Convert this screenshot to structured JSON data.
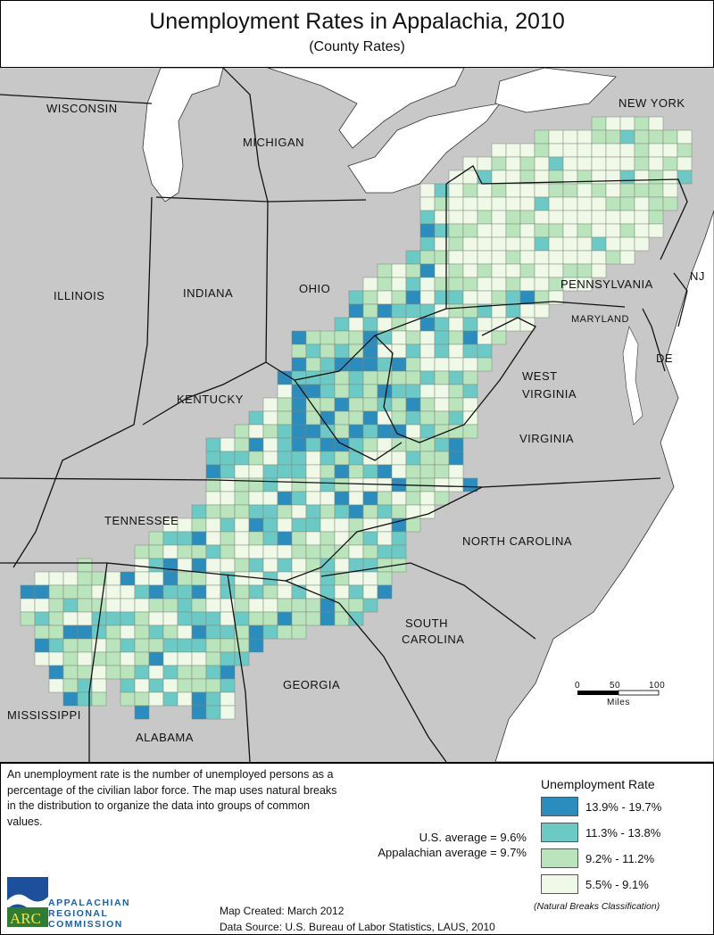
{
  "title": "Unemployment Rates in Appalachia, 2010",
  "subtitle": "(County Rates)",
  "map": {
    "state_labels": [
      "WISCONSIN",
      "MICHIGAN",
      "NEW YORK",
      "ILLINOIS",
      "INDIANA",
      "OHIO",
      "PENNSYLVANIA",
      "NJ",
      "MARYLAND",
      "DE",
      "WEST",
      "VIRGINIA",
      "KENTUCKY",
      "VIRGINIA",
      "TENNESSEE",
      "NORTH CAROLINA",
      "SOUTH",
      "CAROLINA",
      "GEORGIA",
      "MISSISSIPPI",
      "ALABAMA"
    ],
    "land_color": "#c8c8c8",
    "water_color": "#ffffff",
    "scale_bar": {
      "ticks": [
        "0",
        "50",
        "100"
      ],
      "unit": "Miles"
    }
  },
  "description": "An unemployment rate is the number of unemployed persons as a percentage of the civilian labor force. The map uses natural breaks in the distribution to organize the data into groups of common values.",
  "averages": [
    "U.S. average = 9.6%",
    "Appalachian average = 9.7%"
  ],
  "legend": {
    "title": "Unemployment Rate",
    "classes": [
      {
        "label": "13.9% - 19.7%",
        "color": "#2b8cbe"
      },
      {
        "label": "11.3% - 13.8%",
        "color": "#6ccac6"
      },
      {
        "label": "9.2% - 11.2%",
        "color": "#bae4bc"
      },
      {
        "label": "5.5% - 9.1%",
        "color": "#f0f9e8"
      }
    ],
    "note": "(Natural Breaks Classification)"
  },
  "credits": {
    "created": "Map Created: March 2012",
    "source": "Data Source: U.S. Bureau of Labor Statistics, LAUS, 2010"
  },
  "logo": {
    "abbr": "ARC",
    "lines": [
      "APPALACHIAN",
      "REGIONAL",
      "COMMISSION"
    ]
  }
}
